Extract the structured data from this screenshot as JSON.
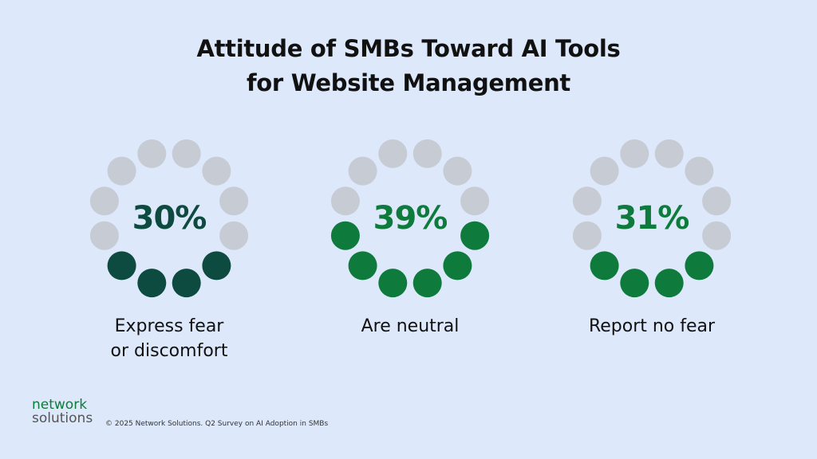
{
  "title_lines": [
    "Attitude of SMBs Toward AI Tools",
    "for Website Management"
  ],
  "colors": {
    "inactive": "#c7cbd3",
    "background": "#dde8fb"
  },
  "chart_data": {
    "type": "gauge",
    "title": "Attitude of SMBs Toward AI Tools for Website Management",
    "total_dots": 12,
    "series": [
      {
        "label_lines": [
          "Express fear",
          "or discomfort"
        ],
        "value": 30,
        "display": "30%",
        "filled_dots": 4,
        "color": "#0d4a3f"
      },
      {
        "label_lines": [
          "Are neutral"
        ],
        "value": 39,
        "display": "39%",
        "filled_dots": 6,
        "color": "#0e7a3b"
      },
      {
        "label_lines": [
          "Report no fear"
        ],
        "value": 31,
        "display": "31%",
        "filled_dots": 4,
        "color": "#0e7a3b"
      }
    ]
  },
  "logo": {
    "line1": "network",
    "line2": "solutions"
  },
  "footer": "© 2025 Network Solutions. Q2 Survey on AI Adoption in SMBs"
}
